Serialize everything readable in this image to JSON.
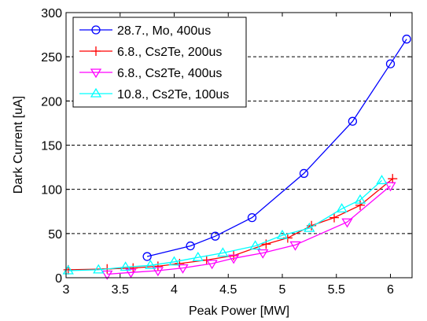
{
  "chart_data": {
    "type": "line",
    "xlabel": "Peak Power [MW]",
    "ylabel": "Dark Current [uA]",
    "xlim": [
      3,
      6.2
    ],
    "ylim": [
      0,
      300
    ],
    "xticks": [
      "3",
      "3.5",
      "4",
      "4.5",
      "5",
      "5.5",
      "6"
    ],
    "yticks": [
      "0",
      "50",
      "100",
      "150",
      "200",
      "250",
      "300"
    ],
    "grid": "horizontal dashed",
    "legend_position": "top-left",
    "series": [
      {
        "name": "28.7., Mo, 400us",
        "color": "#0000ff",
        "marker": "circle",
        "x": [
          3.75,
          4.15,
          4.38,
          4.72,
          5.2,
          5.65,
          6.0,
          6.15
        ],
        "y": [
          24,
          36,
          47,
          68,
          118,
          177,
          242,
          270
        ]
      },
      {
        "name": "6.8., Cs2Te, 200us",
        "color": "#ff0000",
        "marker": "plus",
        "x": [
          3.02,
          3.38,
          3.62,
          3.85,
          4.05,
          4.3,
          4.55,
          4.85,
          5.05,
          5.27,
          5.48,
          5.72,
          6.02
        ],
        "y": [
          9,
          10,
          11,
          13,
          16,
          20,
          25,
          38,
          45,
          59,
          68,
          82,
          112
        ]
      },
      {
        "name": "6.8., Cs2Te, 400us",
        "color": "#ff00ff",
        "marker": "triangle-down",
        "x": [
          3.38,
          3.6,
          3.85,
          4.08,
          4.35,
          4.55,
          4.82,
          5.12,
          5.6,
          6.0
        ],
        "y": [
          4,
          6,
          8,
          11,
          16,
          22,
          28,
          37,
          63,
          104
        ]
      },
      {
        "name": "10.8., Cs2Te, 100us",
        "color": "#00ffff",
        "marker": "triangle-up",
        "x": [
          3.02,
          3.3,
          3.55,
          3.78,
          4.0,
          4.22,
          4.45,
          4.75,
          5.0,
          5.25,
          5.55,
          5.72,
          5.92
        ],
        "y": [
          8,
          9,
          12,
          14,
          18,
          23,
          28,
          36,
          48,
          56,
          78,
          88,
          110
        ]
      }
    ]
  }
}
